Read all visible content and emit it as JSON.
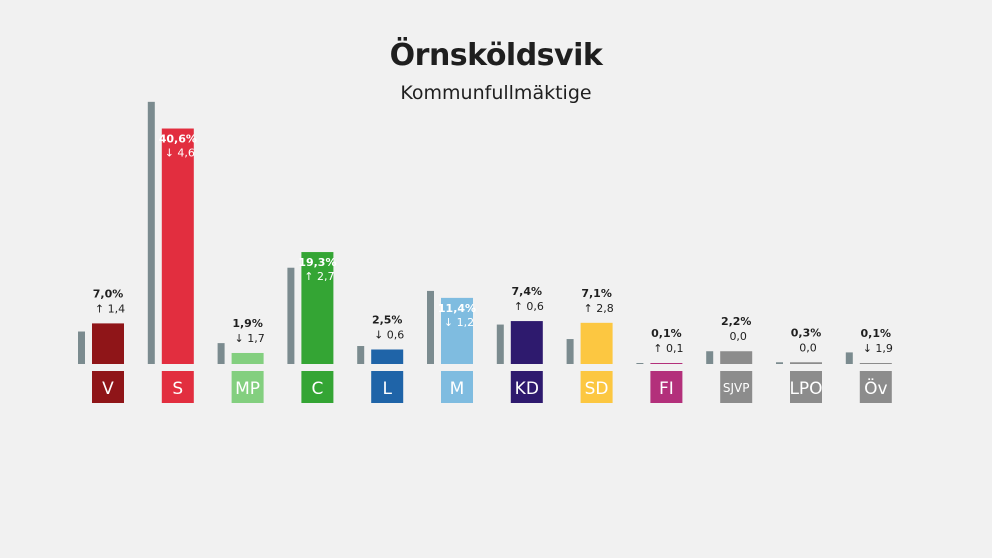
{
  "title": "Örnsköldsvik",
  "subtitle": "Kommunfullmäktige",
  "chart_data": {
    "type": "bar",
    "title": "Örnsköldsvik",
    "subtitle": "Kommunfullmäktige",
    "categories": [
      "V",
      "S",
      "MP",
      "C",
      "L",
      "M",
      "KD",
      "SD",
      "FI",
      "SJVP",
      "LPO",
      "Öv"
    ],
    "series": [
      {
        "values": [
          7.0,
          40.6,
          1.9,
          19.3,
          2.5,
          11.4,
          7.4,
          7.1,
          0.1,
          2.2,
          0.3,
          0.1
        ]
      },
      {
        "values": [
          5.6,
          45.2,
          3.6,
          16.6,
          3.1,
          12.6,
          6.8,
          4.3,
          0.0,
          2.2,
          0.3,
          2.0
        ]
      }
    ],
    "value_labels": [
      "7,0%",
      "40,6%",
      "1,9%",
      "19,3%",
      "2,5%",
      "11,4%",
      "7,4%",
      "7,1%",
      "0,1%",
      "2,2%",
      "0,3%",
      "0,1%"
    ],
    "change_labels": [
      "1,4",
      "4,6",
      "1,7",
      "2,7",
      "0,6",
      "1,2",
      "0,6",
      "2,8",
      "0,1",
      "0,0",
      "0,0",
      "1,9"
    ],
    "change_direction": [
      "up",
      "down",
      "down",
      "up",
      "down",
      "down",
      "up",
      "up",
      "up",
      "none",
      "none",
      "down"
    ],
    "colors": [
      "#8f1518",
      "#e22e3f",
      "#83cf7f",
      "#34a534",
      "#1f64a8",
      "#7fbce0",
      "#2e1a6e",
      "#fcc741",
      "#b3307b",
      "#8c8c8c",
      "#8c8c8c",
      "#8c8c8c"
    ],
    "previous_color": "#7b8b8f",
    "ylim": [
      0,
      45
    ]
  }
}
